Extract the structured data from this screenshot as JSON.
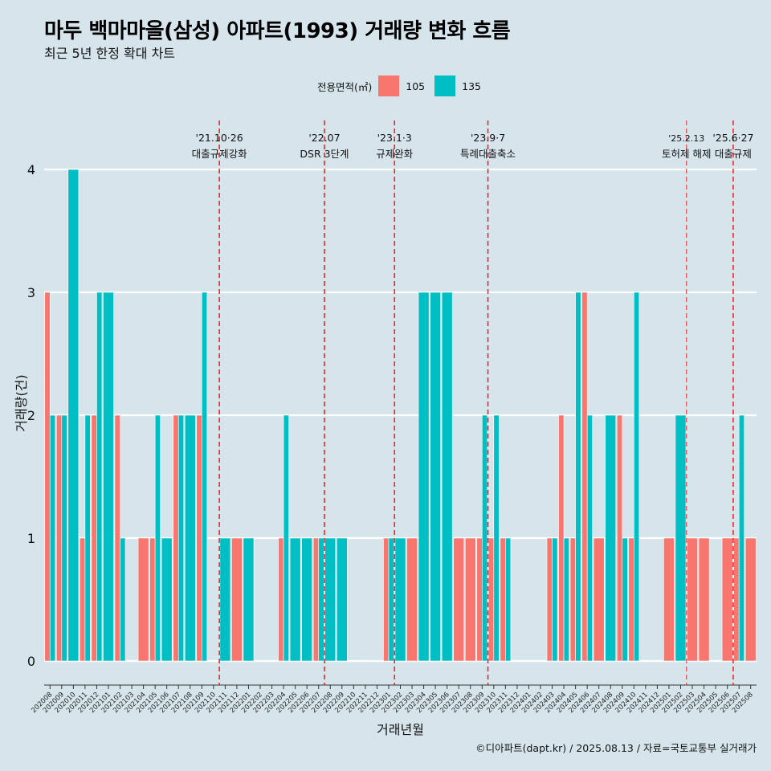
{
  "title": "마두 백마마을(삼성) 아파트(1993) 거래량 변화 흐름",
  "subtitle": "최근 5년 한정 확대 차트",
  "caption": "©디아파트(dapt.kr) / 2025.08.13 / 자료=국토교통부 실거래가",
  "legend": {
    "title": "전용면적(㎡)",
    "items": [
      {
        "label": "105",
        "color": "#f8766d"
      },
      {
        "label": "135",
        "color": "#00bfc4"
      }
    ]
  },
  "chart_data": {
    "type": "bar",
    "xlabel": "거래년월",
    "ylabel": "거래량(건)",
    "ylim": [
      0,
      4
    ],
    "yticks": [
      0,
      1,
      2,
      3,
      4
    ],
    "grid": "horizontal",
    "categories": [
      "202008",
      "202009",
      "202010",
      "202011",
      "202012",
      "202101",
      "202102",
      "202103",
      "202104",
      "202105",
      "202106",
      "202107",
      "202108",
      "202109",
      "202110",
      "202111",
      "202112",
      "202201",
      "202202",
      "202203",
      "202204",
      "202205",
      "202206",
      "202207",
      "202208",
      "202209",
      "202210",
      "202211",
      "202212",
      "202301",
      "202302",
      "202303",
      "202304",
      "202305",
      "202306",
      "202307",
      "202308",
      "202309",
      "202310",
      "202311",
      "202312",
      "202401",
      "202402",
      "202403",
      "202404",
      "202405",
      "202406",
      "202407",
      "202408",
      "202409",
      "202410",
      "202411",
      "202412",
      "202501",
      "202502",
      "202503",
      "202504",
      "202505",
      "202506",
      "202507",
      "202508"
    ],
    "series": [
      {
        "name": "105",
        "color": "#f8766d",
        "values": [
          3,
          2,
          0,
          1,
          2,
          0,
          2,
          0,
          1,
          1,
          0,
          2,
          0,
          2,
          0,
          0,
          1,
          0,
          0,
          0,
          1,
          0,
          0,
          1,
          0,
          0,
          0,
          0,
          0,
          1,
          0,
          1,
          0,
          0,
          0,
          1,
          1,
          1,
          1,
          1,
          0,
          0,
          0,
          1,
          2,
          1,
          3,
          1,
          0,
          2,
          1,
          0,
          0,
          1,
          0,
          1,
          1,
          0,
          1,
          1,
          1
        ]
      },
      {
        "name": "135",
        "color": "#00bfc4",
        "values": [
          2,
          2,
          4,
          2,
          3,
          3,
          1,
          0,
          0,
          2,
          1,
          2,
          2,
          3,
          0,
          1,
          0,
          1,
          0,
          0,
          2,
          1,
          1,
          1,
          1,
          1,
          0,
          0,
          0,
          1,
          1,
          0,
          3,
          3,
          3,
          0,
          0,
          2,
          2,
          1,
          0,
          0,
          0,
          1,
          1,
          3,
          2,
          0,
          2,
          1,
          3,
          0,
          0,
          0,
          2,
          0,
          0,
          0,
          0,
          2,
          0
        ]
      }
    ],
    "annotations": [
      {
        "date": "'21.10·26",
        "text": "대출규제강화",
        "after": "202110"
      },
      {
        "date": "'22.07",
        "text": "DSR 3단계",
        "after": "202207"
      },
      {
        "date": "'23.1·3",
        "text": "규제완화",
        "after": "202301"
      },
      {
        "date": "'23.9·7",
        "text": "특례대출축소",
        "after": "202309"
      },
      {
        "date": "'25.2.13",
        "text": "토허제 해제",
        "after": "202502"
      },
      {
        "date": "'25.6·27",
        "text": "대출규제",
        "after": "202506"
      }
    ]
  }
}
